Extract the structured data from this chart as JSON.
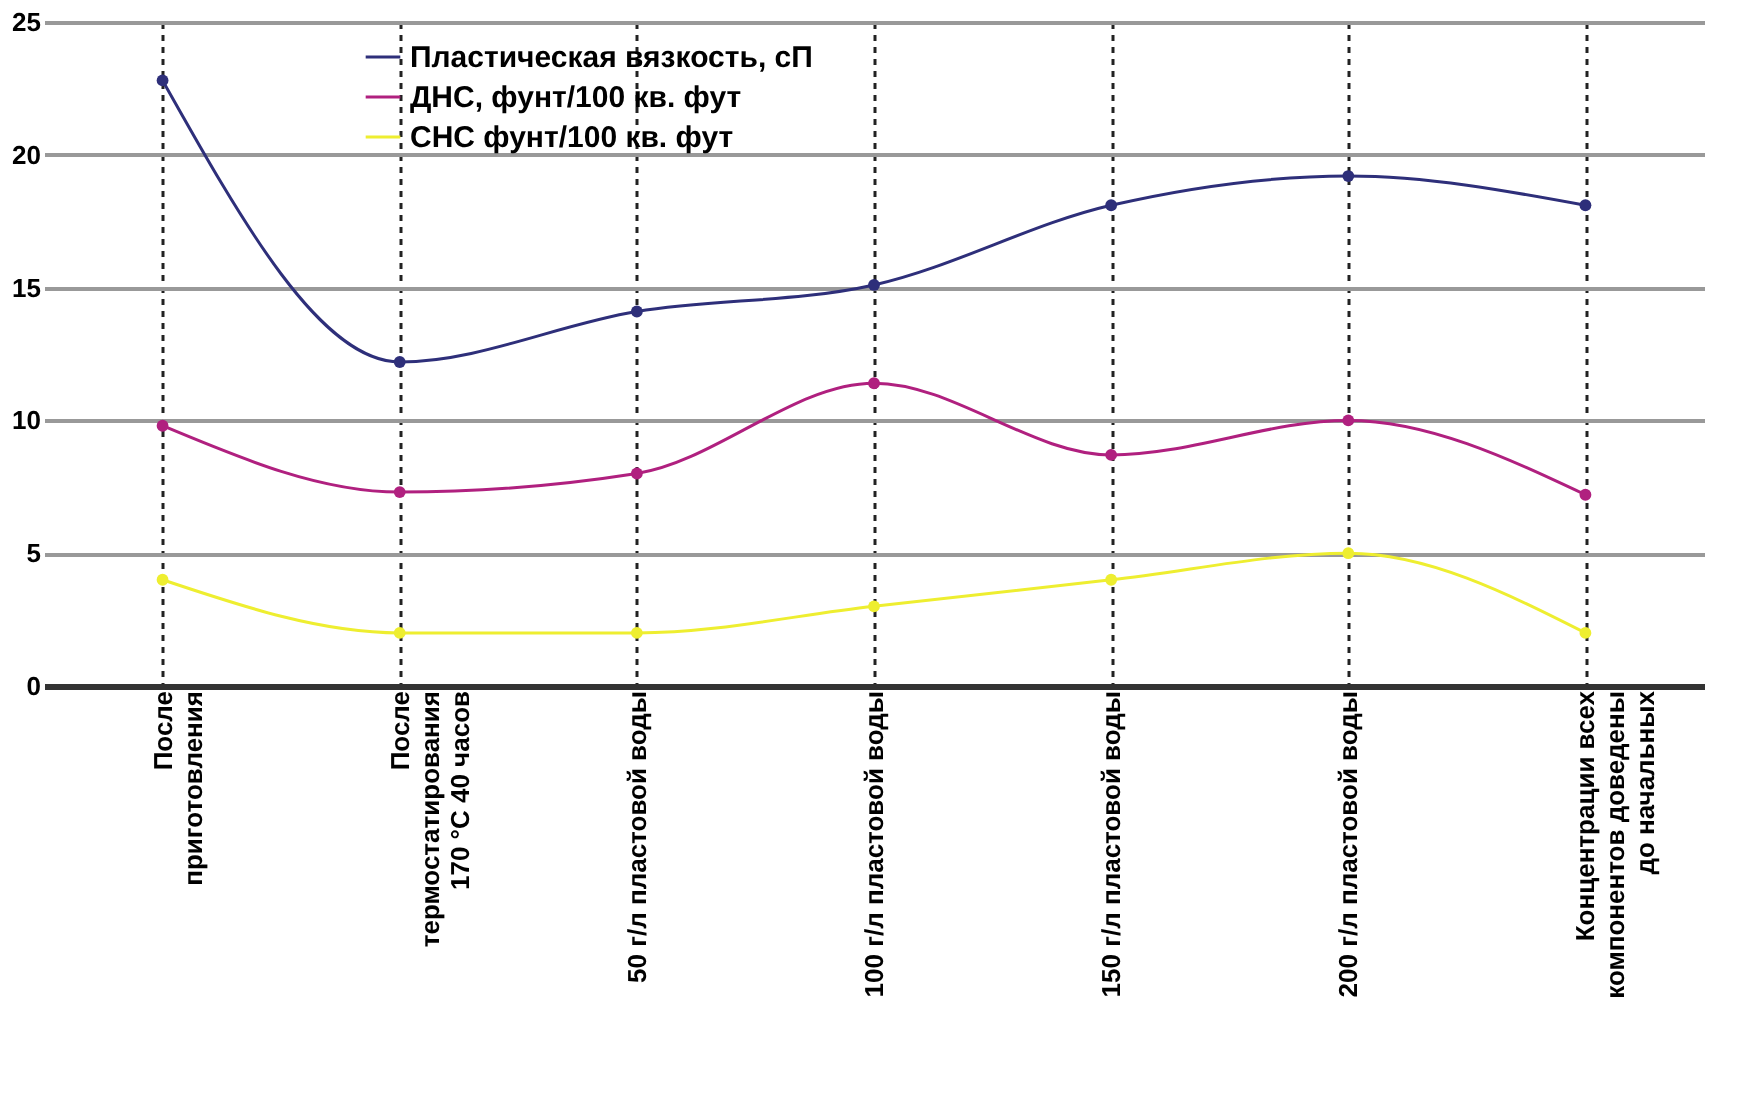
{
  "chart_data": {
    "type": "line",
    "categories": [
      "После\nприготовления",
      "После\nтермостатирования\n170 °C 40 часов",
      "50 г/л пластовой воды",
      "100 г/л пластовой воды",
      "150 г/л пластовой воды",
      "200 г/л пластовой воды",
      "Концентрации всех\nкомпонентов доведены\nдо начальных"
    ],
    "series": [
      {
        "name": "Пластическая вязкость, сП",
        "color": "#2e2f7a",
        "values": [
          22.8,
          12.2,
          14.1,
          15.1,
          18.1,
          19.2,
          18.1
        ]
      },
      {
        "name": "ДНС, фунт/100 кв. фут",
        "color": "#b0207f",
        "values": [
          9.8,
          7.3,
          8.0,
          11.4,
          8.7,
          10.0,
          7.2
        ]
      },
      {
        "name": "СНС фунт/100 кв. фут",
        "color": "#eeee30",
        "values": [
          4.0,
          2.0,
          2.0,
          3.0,
          4.0,
          5.0,
          2.0
        ]
      }
    ],
    "ylim": [
      0,
      25
    ],
    "yticks": [
      0,
      5,
      10,
      15,
      20,
      25
    ],
    "grid": true,
    "legend": "top left",
    "marker": "circle",
    "line_style": "solid"
  }
}
